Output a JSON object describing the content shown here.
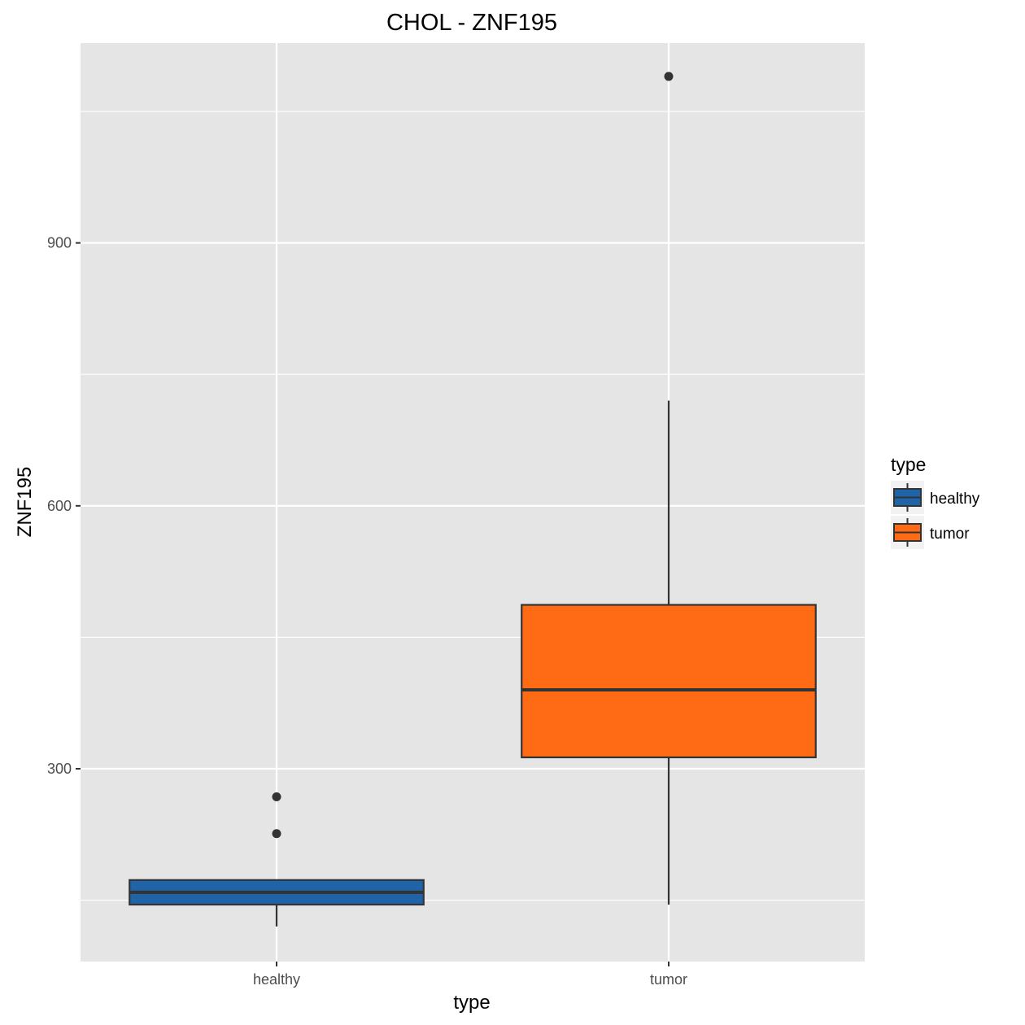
{
  "chart_data": {
    "type": "boxplot",
    "title": "CHOL - ZNF195",
    "xlabel": "type",
    "ylabel": "ZNF195",
    "categories": [
      "healthy",
      "tumor"
    ],
    "y_ticks": [
      300,
      600,
      900
    ],
    "ylim": [
      80,
      1128
    ],
    "grid": true,
    "legend": {
      "title": "type",
      "position": "right",
      "entries": [
        "healthy",
        "tumor"
      ]
    },
    "colors": {
      "healthy": "#1f63a8",
      "tumor": "#ff6a14",
      "panel": "#e5e5e5",
      "grid": "#ffffff"
    },
    "boxes": [
      {
        "category": "healthy",
        "whisker_low": 120,
        "q1": 145,
        "median": 159,
        "q3": 173,
        "whisker_high": 173,
        "outliers": [
          226,
          268
        ]
      },
      {
        "category": "tumor",
        "whisker_low": 145,
        "q1": 313,
        "median": 390,
        "q3": 487,
        "whisker_high": 720,
        "outliers": [
          1090
        ]
      }
    ]
  }
}
